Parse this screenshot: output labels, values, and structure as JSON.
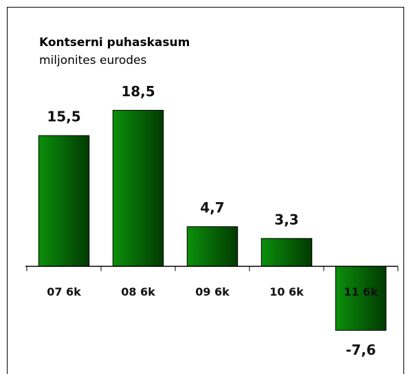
{
  "chart_data": {
    "type": "bar",
    "title": "Kontserni puhaskasum",
    "subtitle": "miljonites eurodes",
    "categories": [
      "07 6k",
      "08 6k",
      "09 6k",
      "10 6k",
      "11 6k"
    ],
    "values": [
      15.5,
      18.5,
      4.7,
      3.3,
      -7.6
    ],
    "value_labels": [
      "15,5",
      "18,5",
      "4,7",
      "3,3",
      "-7,6"
    ],
    "color": "#007a00",
    "ylim": [
      -10,
      20
    ]
  }
}
